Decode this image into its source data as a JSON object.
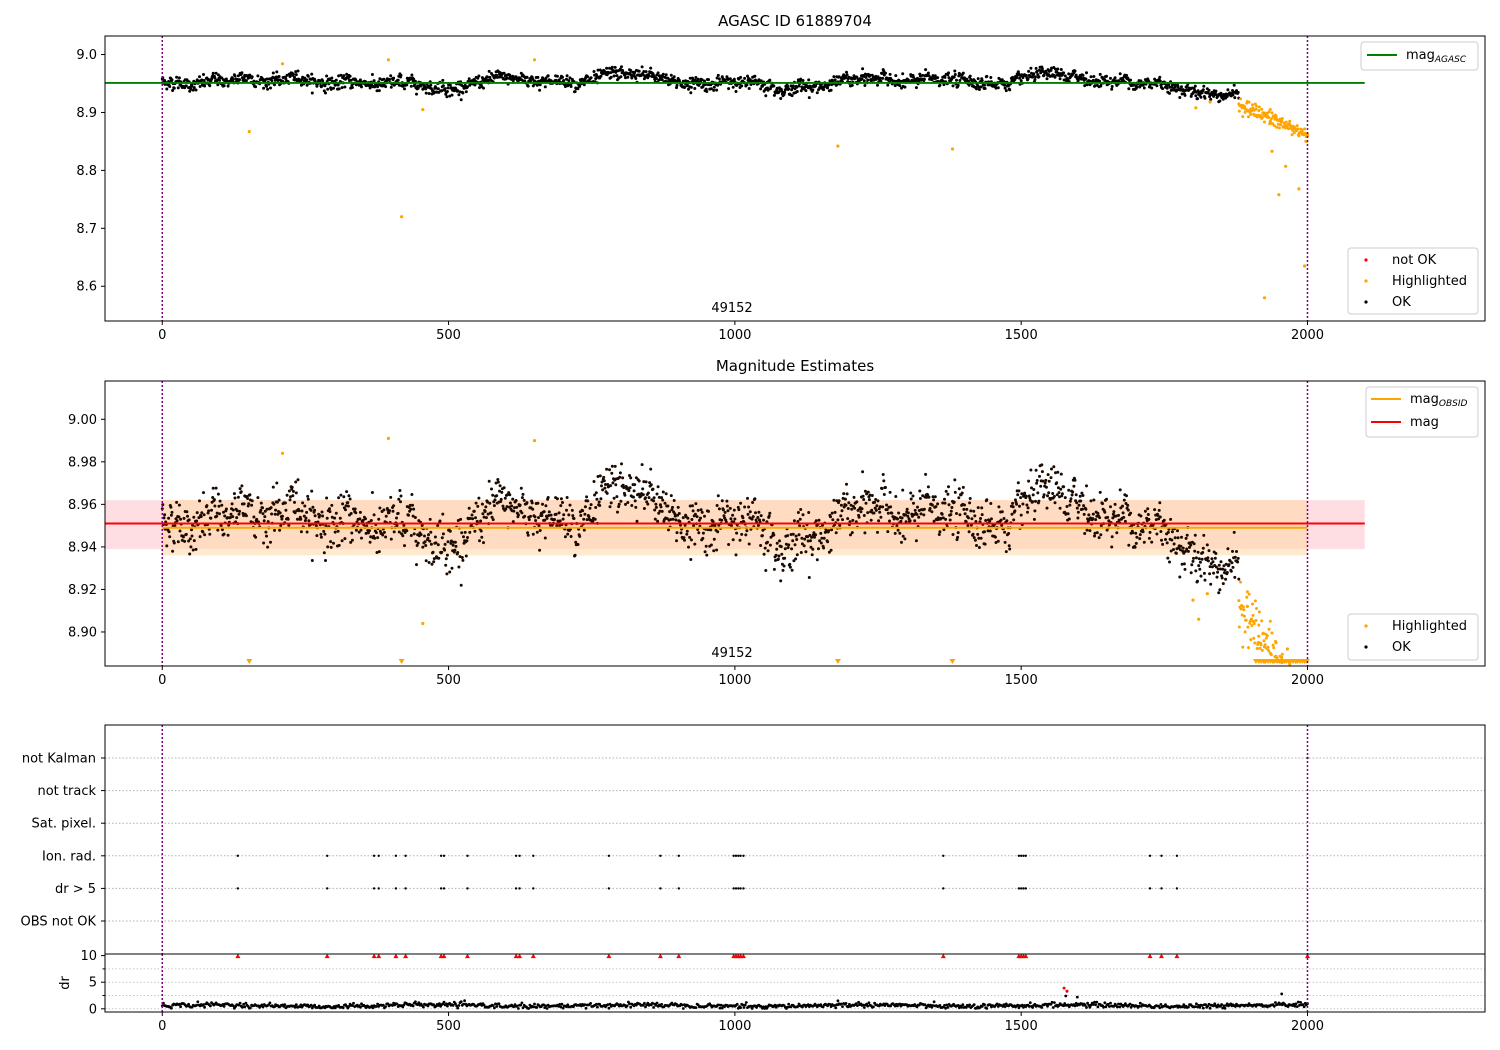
{
  "chart_data": [
    {
      "type": "scatter",
      "title": "AGASC ID 61889704",
      "annotation": "49152",
      "xlim": [
        -100,
        2310
      ],
      "ylim": [
        8.54,
        9.032
      ],
      "xticks": [
        0,
        500,
        1000,
        1500,
        2000
      ],
      "xtick_labels": [
        "0",
        "500",
        "1000",
        "1500",
        "2000"
      ],
      "yticks": [
        8.6,
        8.7,
        8.8,
        8.9,
        9.0
      ],
      "ytick_labels": [
        "8.6",
        "8.7",
        "8.8",
        "8.9",
        "9.0"
      ],
      "vlines": [
        0,
        2000
      ],
      "hline": {
        "name": "mag",
        "subscript": "AGASC",
        "value": 8.951,
        "x": [
          -100,
          2100
        ],
        "color": "#008000"
      },
      "series": [
        {
          "name": "not OK",
          "color": "#ff0000",
          "points": []
        },
        {
          "name": "Highlighted",
          "color": "#ffa500",
          "points": [
            [
              152,
              8.867
            ],
            [
              210,
              8.984
            ],
            [
              395,
              8.991
            ],
            [
              418,
              8.72
            ],
            [
              455,
              8.905
            ],
            [
              650,
              8.991
            ],
            [
              1180,
              8.842
            ],
            [
              1380,
              8.837
            ],
            [
              1805,
              8.908
            ],
            [
              1830,
              8.918
            ],
            [
              1890,
              8.91
            ],
            [
              1900,
              8.9
            ],
            [
              1910,
              8.895
            ],
            [
              1920,
              8.89
            ],
            [
              1925,
              8.58
            ],
            [
              1935,
              8.885
            ],
            [
              1938,
              8.833
            ],
            [
              1945,
              8.893
            ],
            [
              1950,
              8.758
            ],
            [
              1955,
              8.888
            ],
            [
              1962,
              8.807
            ],
            [
              1968,
              8.88
            ],
            [
              1975,
              8.876
            ],
            [
              1985,
              8.768
            ],
            [
              1990,
              8.87
            ],
            [
              1995,
              8.635
            ],
            [
              2000,
              8.86
            ]
          ]
        },
        {
          "name": "OK",
          "color": "#000000",
          "points": []
        }
      ],
      "series_profile": {
        "ok_x_range": [
          0,
          1880
        ],
        "ok_center": 8.953,
        "decline_x_range": [
          1880,
          2000
        ],
        "decline_to": 8.86
      }
    },
    {
      "type": "scatter",
      "title": "Magnitude Estimates",
      "annotation": "49152",
      "xlim": [
        -100,
        2310
      ],
      "ylim": [
        8.884,
        9.018
      ],
      "xticks": [
        0,
        500,
        1000,
        1500,
        2000
      ],
      "xtick_labels": [
        "0",
        "500",
        "1000",
        "1500",
        "2000"
      ],
      "yticks": [
        8.9,
        8.92,
        8.94,
        8.96,
        8.98,
        9.0
      ],
      "ytick_labels": [
        "8.90",
        "8.92",
        "8.94",
        "8.96",
        "8.98",
        "9.00"
      ],
      "vlines": [
        0,
        2000
      ],
      "lines": [
        {
          "name": "mag",
          "subscript": "OBSID",
          "value": 8.949,
          "x": [
            0,
            2000
          ],
          "color": "#ffa500"
        },
        {
          "name": "mag",
          "subscript": "",
          "value": 8.951,
          "x": [
            -100,
            2100
          ],
          "color": "#ff0000"
        }
      ],
      "bands": [
        {
          "x": [
            -100,
            2100
          ],
          "y": [
            8.939,
            8.962
          ],
          "color": "#ffb6c1"
        },
        {
          "x": [
            0,
            2000
          ],
          "y": [
            8.936,
            8.962
          ],
          "color": "#ffd8a8"
        }
      ],
      "series": [
        {
          "name": "Highlighted",
          "color": "#ffa500",
          "points": [
            [
              210,
              8.984
            ],
            [
              395,
              8.991
            ],
            [
              455,
              8.904
            ],
            [
              650,
              8.99
            ],
            [
              1800,
              8.915
            ],
            [
              1810,
              8.906
            ],
            [
              1825,
              8.918
            ],
            [
              1895,
              8.912
            ],
            [
              1905,
              8.905
            ],
            [
              1915,
              8.898
            ],
            [
              1925,
              8.893
            ],
            [
              1935,
              8.89
            ],
            [
              1945,
              8.895
            ],
            [
              1955,
              8.888
            ],
            [
              1965,
              8.892
            ]
          ]
        },
        {
          "name": "OK",
          "color": "#000000",
          "points": []
        }
      ],
      "clipped_markers": [
        152,
        418,
        1180,
        1380,
        1910,
        1925,
        1940,
        1960,
        1980,
        1995
      ]
    },
    {
      "type": "scatter",
      "flags": [
        "not Kalman",
        "not track",
        "Sat. pixel.",
        "Ion. rad.",
        "dr > 5",
        "OBS not OK"
      ],
      "flag_points": {
        "Ion. rad.": [
          132,
          288,
          370,
          378,
          408,
          425,
          487,
          492,
          533,
          618,
          624,
          648,
          780,
          870,
          902,
          998,
          1002,
          1006,
          1010,
          1015,
          1364,
          1496,
          1500,
          1504,
          1508,
          1725,
          1745,
          1772
        ],
        "dr > 5": [
          132,
          288,
          370,
          378,
          408,
          425,
          487,
          492,
          533,
          618,
          624,
          648,
          780,
          870,
          902,
          998,
          1002,
          1006,
          1010,
          1015,
          1364,
          1496,
          1500,
          1504,
          1508,
          1725,
          1745,
          1772
        ],
        "not Kalman": [
          2000
        ]
      },
      "xlim": [
        -100,
        2310
      ],
      "vlines": [
        0,
        2000
      ]
    },
    {
      "type": "scatter",
      "ylabel": "dr",
      "xlim": [
        -100,
        2310
      ],
      "ylim": [
        -0.6,
        10.3
      ],
      "xticks": [
        0,
        500,
        1000,
        1500,
        2000
      ],
      "xtick_labels": [
        "0",
        "500",
        "1000",
        "1500",
        "2000"
      ],
      "yticks": [
        0,
        5,
        10
      ],
      "ytick_labels": [
        "0",
        "5",
        "10"
      ],
      "vlines": [
        0,
        2000
      ],
      "clipped_x": [
        132,
        288,
        370,
        378,
        408,
        425,
        487,
        492,
        533,
        618,
        624,
        648,
        780,
        870,
        902,
        998,
        1002,
        1006,
        1010,
        1015,
        1364,
        1496,
        1500,
        1504,
        1508,
        1725,
        1745,
        1772,
        2000
      ],
      "outliers": [
        [
          1575,
          3.9
        ],
        [
          1580,
          3.3
        ],
        [
          1598,
          2.2
        ],
        [
          1578,
          2.4
        ],
        [
          1955,
          2.8
        ],
        [
          1180,
          1.5
        ]
      ],
      "profile": {
        "x_range": [
          0,
          2000
        ],
        "mean": 0.6,
        "spread": 0.35
      }
    }
  ]
}
